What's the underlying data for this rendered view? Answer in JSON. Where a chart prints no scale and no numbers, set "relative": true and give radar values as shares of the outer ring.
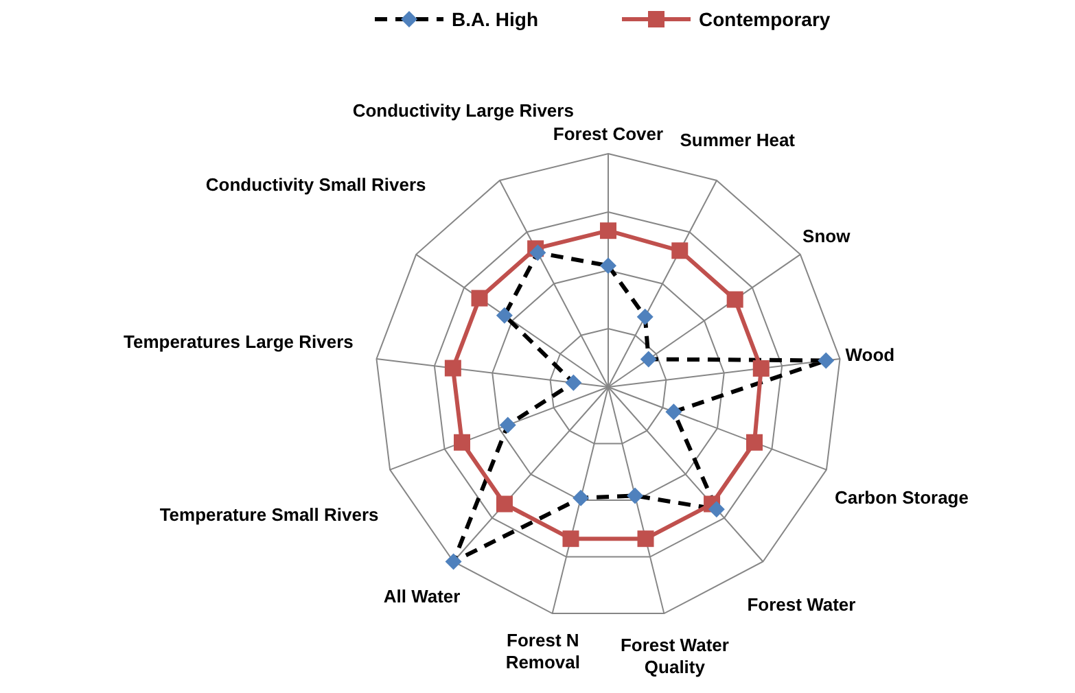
{
  "chart_data": {
    "type": "radar",
    "relative": true,
    "grid": true,
    "legend": "top",
    "categories": [
      "Forest Cover",
      "Summer Heat",
      "Snow",
      "Wood",
      "Carbon Storage",
      "Forest Water",
      "Forest Water Quality",
      "Forest N Removal",
      "All Water",
      "Temperature Small Rivers",
      "Temperatures Large Rivers",
      "Conductivity Small Rivers",
      "Conductivity Large Rivers"
    ],
    "series": [
      {
        "name": "B.A. High",
        "color": "#000000",
        "colors": [
          "#4f81bd",
          "#4f81bd",
          "#4f81bd",
          "#4f81bd",
          "#4f81bd",
          "#4f81bd",
          "#4f81bd",
          "#4f81bd",
          "#4f81bd",
          "#4f81bd",
          "#4f81bd",
          "#4f81bd",
          "#4f81bd"
        ],
        "line_style": "dashed",
        "marker": "diamond",
        "values": [
          0.52,
          0.34,
          0.21,
          0.94,
          0.3,
          0.7,
          0.48,
          0.49,
          1.0,
          0.46,
          0.15,
          0.54,
          0.65
        ]
      },
      {
        "name": "Contemporary",
        "color": "#c0504d",
        "line_style": "solid",
        "marker": "square",
        "values": [
          0.67,
          0.66,
          0.66,
          0.66,
          0.67,
          0.67,
          0.67,
          0.67,
          0.67,
          0.67,
          0.67,
          0.67,
          0.67
        ]
      }
    ]
  }
}
